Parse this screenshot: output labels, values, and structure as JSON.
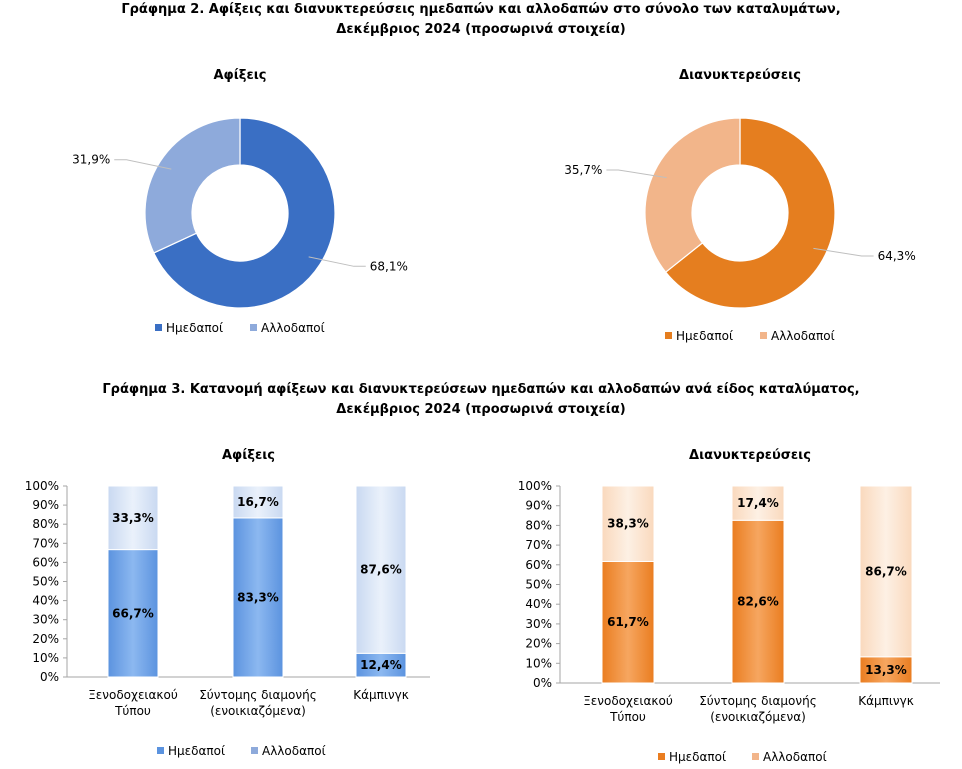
{
  "titles": {
    "graph2_line1": "Γράφημα 2. Αφίξεις και διανυκτερεύσεις ημεδαπών και αλλοδαπών στο σύνολο των καταλυμάτων,",
    "graph2_line2": "Δεκέμβριος 2024  (προσωρινά στοιχεία)",
    "graph3_line1": "Γράφημα 3. Κατανομή αφίξεων και διανυκτερεύσεων ημεδαπών και αλλοδαπών ανά είδος καταλύματος,",
    "graph3_line2": "Δεκέμβριος 2024 (προσωρινά στοιχεία)"
  },
  "colors": {
    "blue_dark": "#3a6fc4",
    "blue_light": "#8eaadb",
    "blue_bar": "#5b93df",
    "blue_bar_light": "#c9d9f1",
    "orange_dark": "#e57e1f",
    "orange_light": "#f2b58a",
    "orange_bar": "#ea7d20",
    "orange_bar_light": "#fad9bd"
  },
  "chart_data": [
    {
      "type": "pie",
      "title": "Αφίξεις",
      "categories": [
        "Ημεδαποί",
        "Αλλοδαποί"
      ],
      "values": [
        68.1,
        31.9
      ],
      "labels": [
        "68,1%",
        "31,9%"
      ],
      "legend": [
        "Ημεδαποί",
        "Αλλοδαποί"
      ]
    },
    {
      "type": "pie",
      "title": "Διανυκτερεύσεις",
      "categories": [
        "Ημεδαποί",
        "Αλλοδαποί"
      ],
      "values": [
        64.3,
        35.7
      ],
      "labels": [
        "64,3%",
        "35,7%"
      ],
      "legend": [
        "Ημεδαποί",
        "Αλλοδαποί"
      ]
    },
    {
      "type": "bar",
      "title": "Αφίξεις",
      "categories": [
        [
          "Ξενοδοχειακού",
          "Τύπου"
        ],
        [
          "Σύντομης διαμονής",
          "(ενοικιαζόμενα)"
        ],
        [
          "Κάμπινγκ"
        ]
      ],
      "series": [
        {
          "name": "Ημεδαποί",
          "values": [
            66.7,
            83.3,
            12.4
          ],
          "labels": [
            "66,7%",
            "83,3%",
            "12,4%"
          ]
        },
        {
          "name": "Αλλοδαποί",
          "values": [
            33.3,
            16.7,
            87.6
          ],
          "labels": [
            "33,3%",
            "16,7%",
            "87,6%"
          ]
        }
      ],
      "yticks": [
        "0%",
        "10%",
        "20%",
        "30%",
        "40%",
        "50%",
        "60%",
        "70%",
        "80%",
        "90%",
        "100%"
      ],
      "ylim": [
        0,
        100
      ],
      "legend": [
        "Ημεδαποί",
        "Αλλοδαποί"
      ]
    },
    {
      "type": "bar",
      "title": "Διανυκτερεύσεις",
      "categories": [
        [
          "Ξενοδοχειακού",
          "Τύπου"
        ],
        [
          "Σύντομης διαμονής",
          "(ενοικιαζόμενα)"
        ],
        [
          "Κάμπινγκ"
        ]
      ],
      "series": [
        {
          "name": "Ημεδαποί",
          "values": [
            61.7,
            82.6,
            13.3
          ],
          "labels": [
            "61,7%",
            "82,6%",
            "13,3%"
          ]
        },
        {
          "name": "Αλλοδαποί",
          "values": [
            38.3,
            17.4,
            86.7
          ],
          "labels": [
            "38,3%",
            "17,4%",
            "86,7%"
          ]
        }
      ],
      "yticks": [
        "0%",
        "10%",
        "20%",
        "30%",
        "40%",
        "50%",
        "60%",
        "70%",
        "80%",
        "90%",
        "100%"
      ],
      "ylim": [
        0,
        100
      ],
      "legend": [
        "Ημεδαποί",
        "Αλλοδαποί"
      ]
    }
  ]
}
